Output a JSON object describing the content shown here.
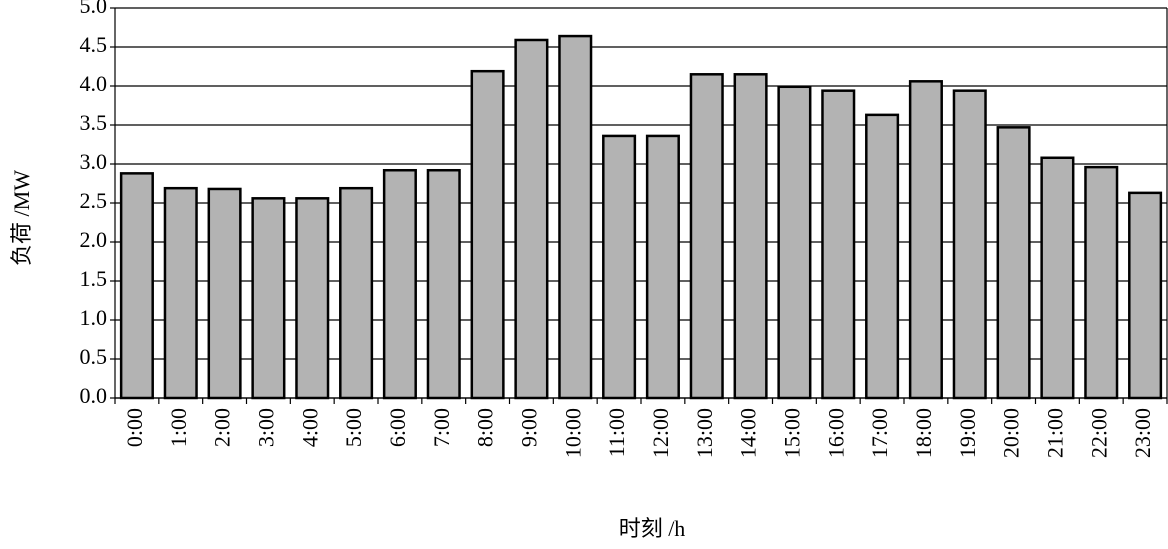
{
  "chart_data": {
    "type": "bar",
    "x_label": "时刻 /h",
    "y_label": "负荷 /MW",
    "categories": [
      "0:00",
      "1:00",
      "2:00",
      "3:00",
      "4:00",
      "5:00",
      "6:00",
      "7:00",
      "8:00",
      "9:00",
      "10:00",
      "11:00",
      "12:00",
      "13:00",
      "14:00",
      "15:00",
      "16:00",
      "17:00",
      "18:00",
      "19:00",
      "20:00",
      "21:00",
      "22:00",
      "23:00"
    ],
    "values": [
      2.88,
      2.69,
      2.68,
      2.56,
      2.56,
      2.69,
      2.92,
      2.92,
      4.19,
      4.59,
      4.64,
      3.36,
      3.36,
      4.15,
      4.15,
      3.99,
      3.94,
      3.63,
      4.06,
      3.94,
      3.47,
      3.08,
      2.96,
      2.63
    ],
    "color": "#b3b3b3",
    "ylim": [
      0,
      5
    ],
    "yticks": [
      {
        "value": 0,
        "label": "0.0"
      },
      0.5,
      {
        "value": 1,
        "label": "1.0"
      },
      1.5,
      {
        "value": 2,
        "label": "2.0"
      },
      2.5,
      {
        "value": 3,
        "label": "3.0"
      },
      3.5,
      {
        "value": 4,
        "label": "4.0"
      },
      4.5,
      {
        "value": 5,
        "label": "5.0"
      }
    ],
    "grid": true
  }
}
